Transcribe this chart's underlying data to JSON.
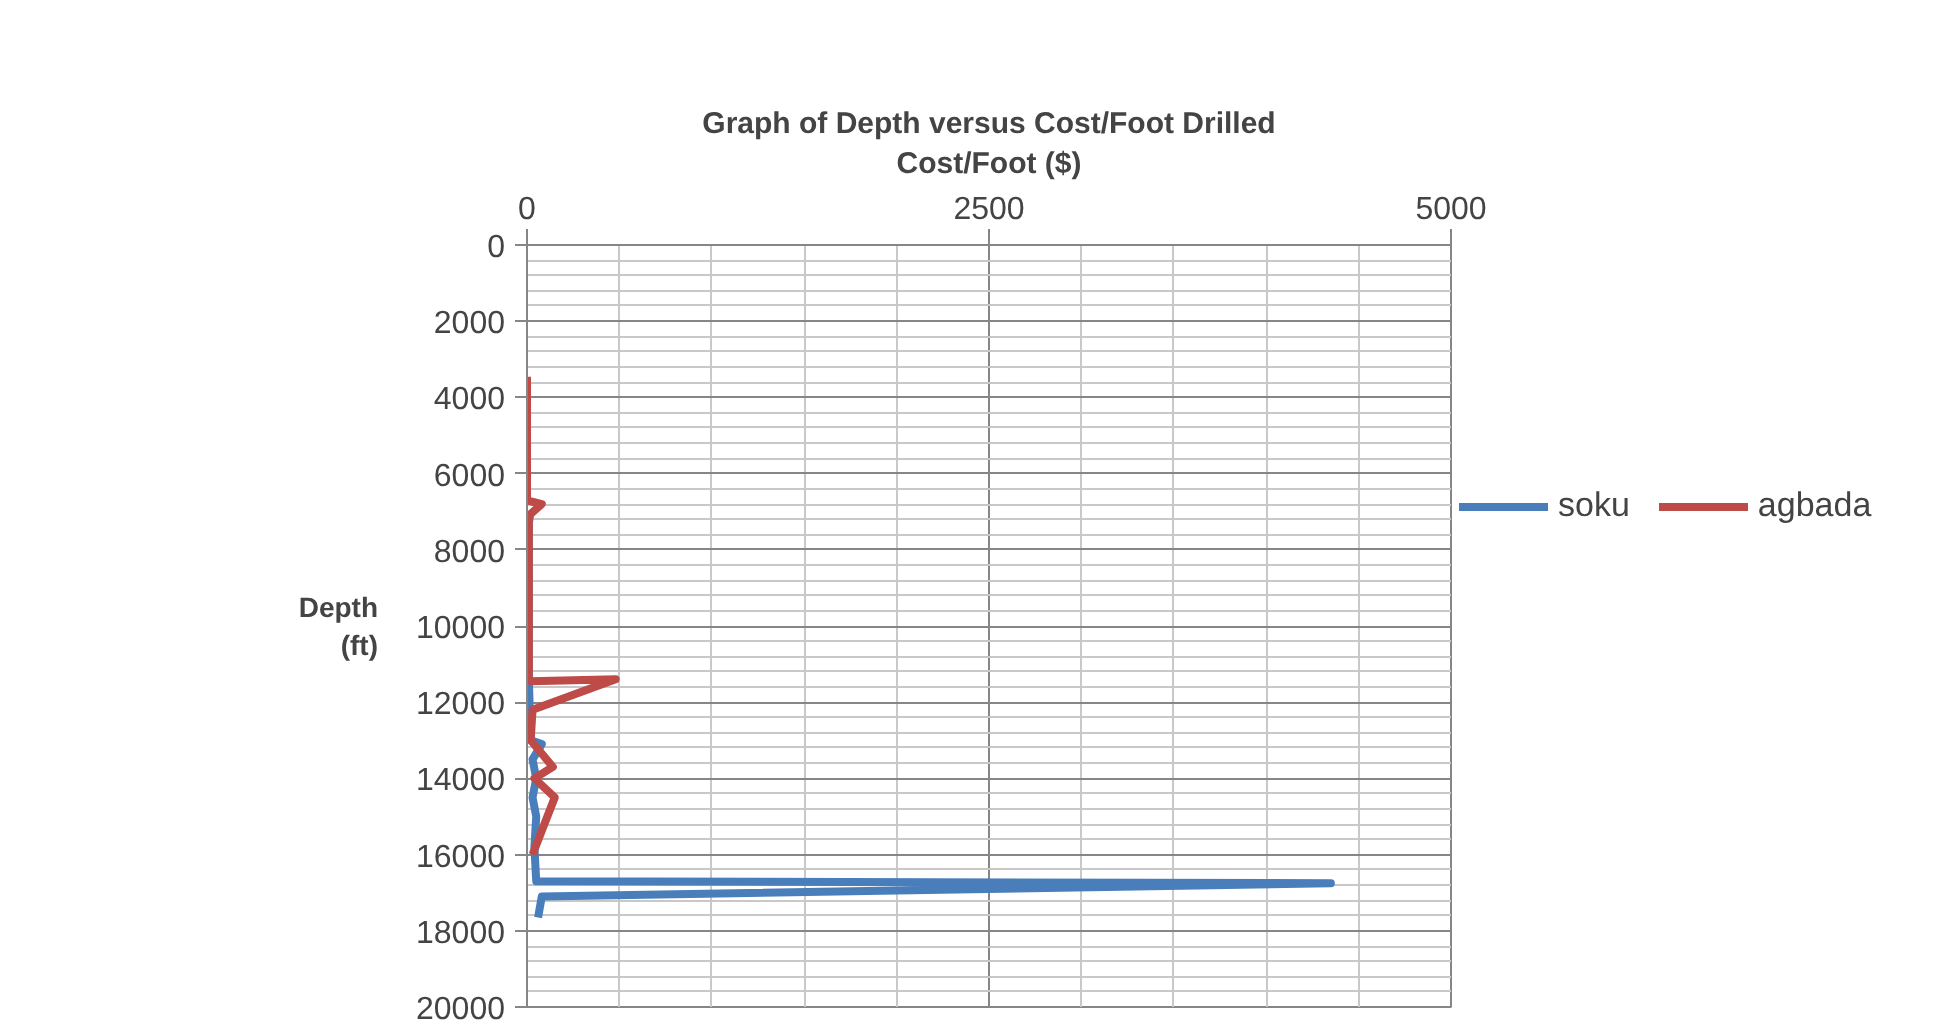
{
  "chart_data": {
    "type": "line",
    "title": "Graph of Depth versus Cost/Foot Drilled",
    "xlabel": "Cost/Foot ($)",
    "ylabel": "Depth (ft)",
    "xlim": [
      0,
      5000
    ],
    "xticks": [
      0,
      2500,
      5000
    ],
    "ylim": [
      20000,
      0
    ],
    "yticks": [
      0,
      2000,
      4000,
      6000,
      8000,
      10000,
      12000,
      14000,
      16000,
      18000,
      20000
    ],
    "grid": true,
    "legend": "right",
    "line_style": "solid",
    "series": [
      {
        "name": "soku",
        "color": "#4a7ebb",
        "x": [
          20,
          10,
          10,
          20,
          80,
          30,
          50,
          30,
          50,
          40,
          50,
          4350,
          80,
          60
        ],
        "values": [
          7000,
          7300,
          11400,
          13000,
          13100,
          13500,
          14000,
          14500,
          15000,
          15800,
          16700,
          16750,
          17100,
          17650
        ]
      },
      {
        "name": "agbada",
        "color": "#be4b48",
        "x": [
          0,
          0,
          80,
          10,
          10,
          20,
          480,
          30,
          20,
          140,
          40,
          150,
          30
        ],
        "values": [
          3460,
          6700,
          6800,
          7100,
          11400,
          11450,
          11400,
          12200,
          13000,
          13700,
          14000,
          14500,
          16000
        ]
      }
    ]
  }
}
